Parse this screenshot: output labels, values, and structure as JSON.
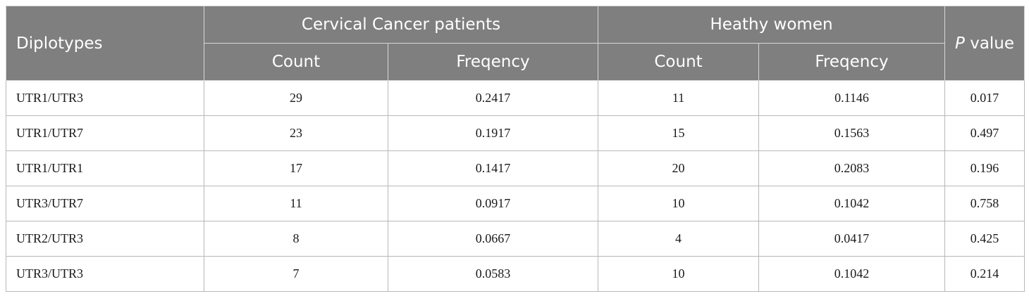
{
  "header": {
    "diplotypes": "Diplotypes",
    "cancer_group": "Cervical Cancer patients",
    "healthy_group": "Heathy women",
    "p_italic": "P",
    "p_rest": " value",
    "count": "Count",
    "frequency": "Freqency"
  },
  "rows": [
    {
      "diplotype": "UTR1/UTR3",
      "cancer_count": "29",
      "cancer_freq": "0.2417",
      "healthy_count": "11",
      "healthy_freq": "0.1146",
      "p": "0.017"
    },
    {
      "diplotype": "UTR1/UTR7",
      "cancer_count": "23",
      "cancer_freq": "0.1917",
      "healthy_count": "15",
      "healthy_freq": "0.1563",
      "p": "0.497"
    },
    {
      "diplotype": "UTR1/UTR1",
      "cancer_count": "17",
      "cancer_freq": "0.1417",
      "healthy_count": "20",
      "healthy_freq": "0.2083",
      "p": "0.196"
    },
    {
      "diplotype": "UTR3/UTR7",
      "cancer_count": "11",
      "cancer_freq": "0.0917",
      "healthy_count": "10",
      "healthy_freq": "0.1042",
      "p": "0.758"
    },
    {
      "diplotype": "UTR2/UTR3",
      "cancer_count": "8",
      "cancer_freq": "0.0667",
      "healthy_count": "4",
      "healthy_freq": "0.0417",
      "p": "0.425"
    },
    {
      "diplotype": "UTR3/UTR3",
      "cancer_count": "7",
      "cancer_freq": "0.0583",
      "healthy_count": "10",
      "healthy_freq": "0.1042",
      "p": "0.214"
    }
  ]
}
